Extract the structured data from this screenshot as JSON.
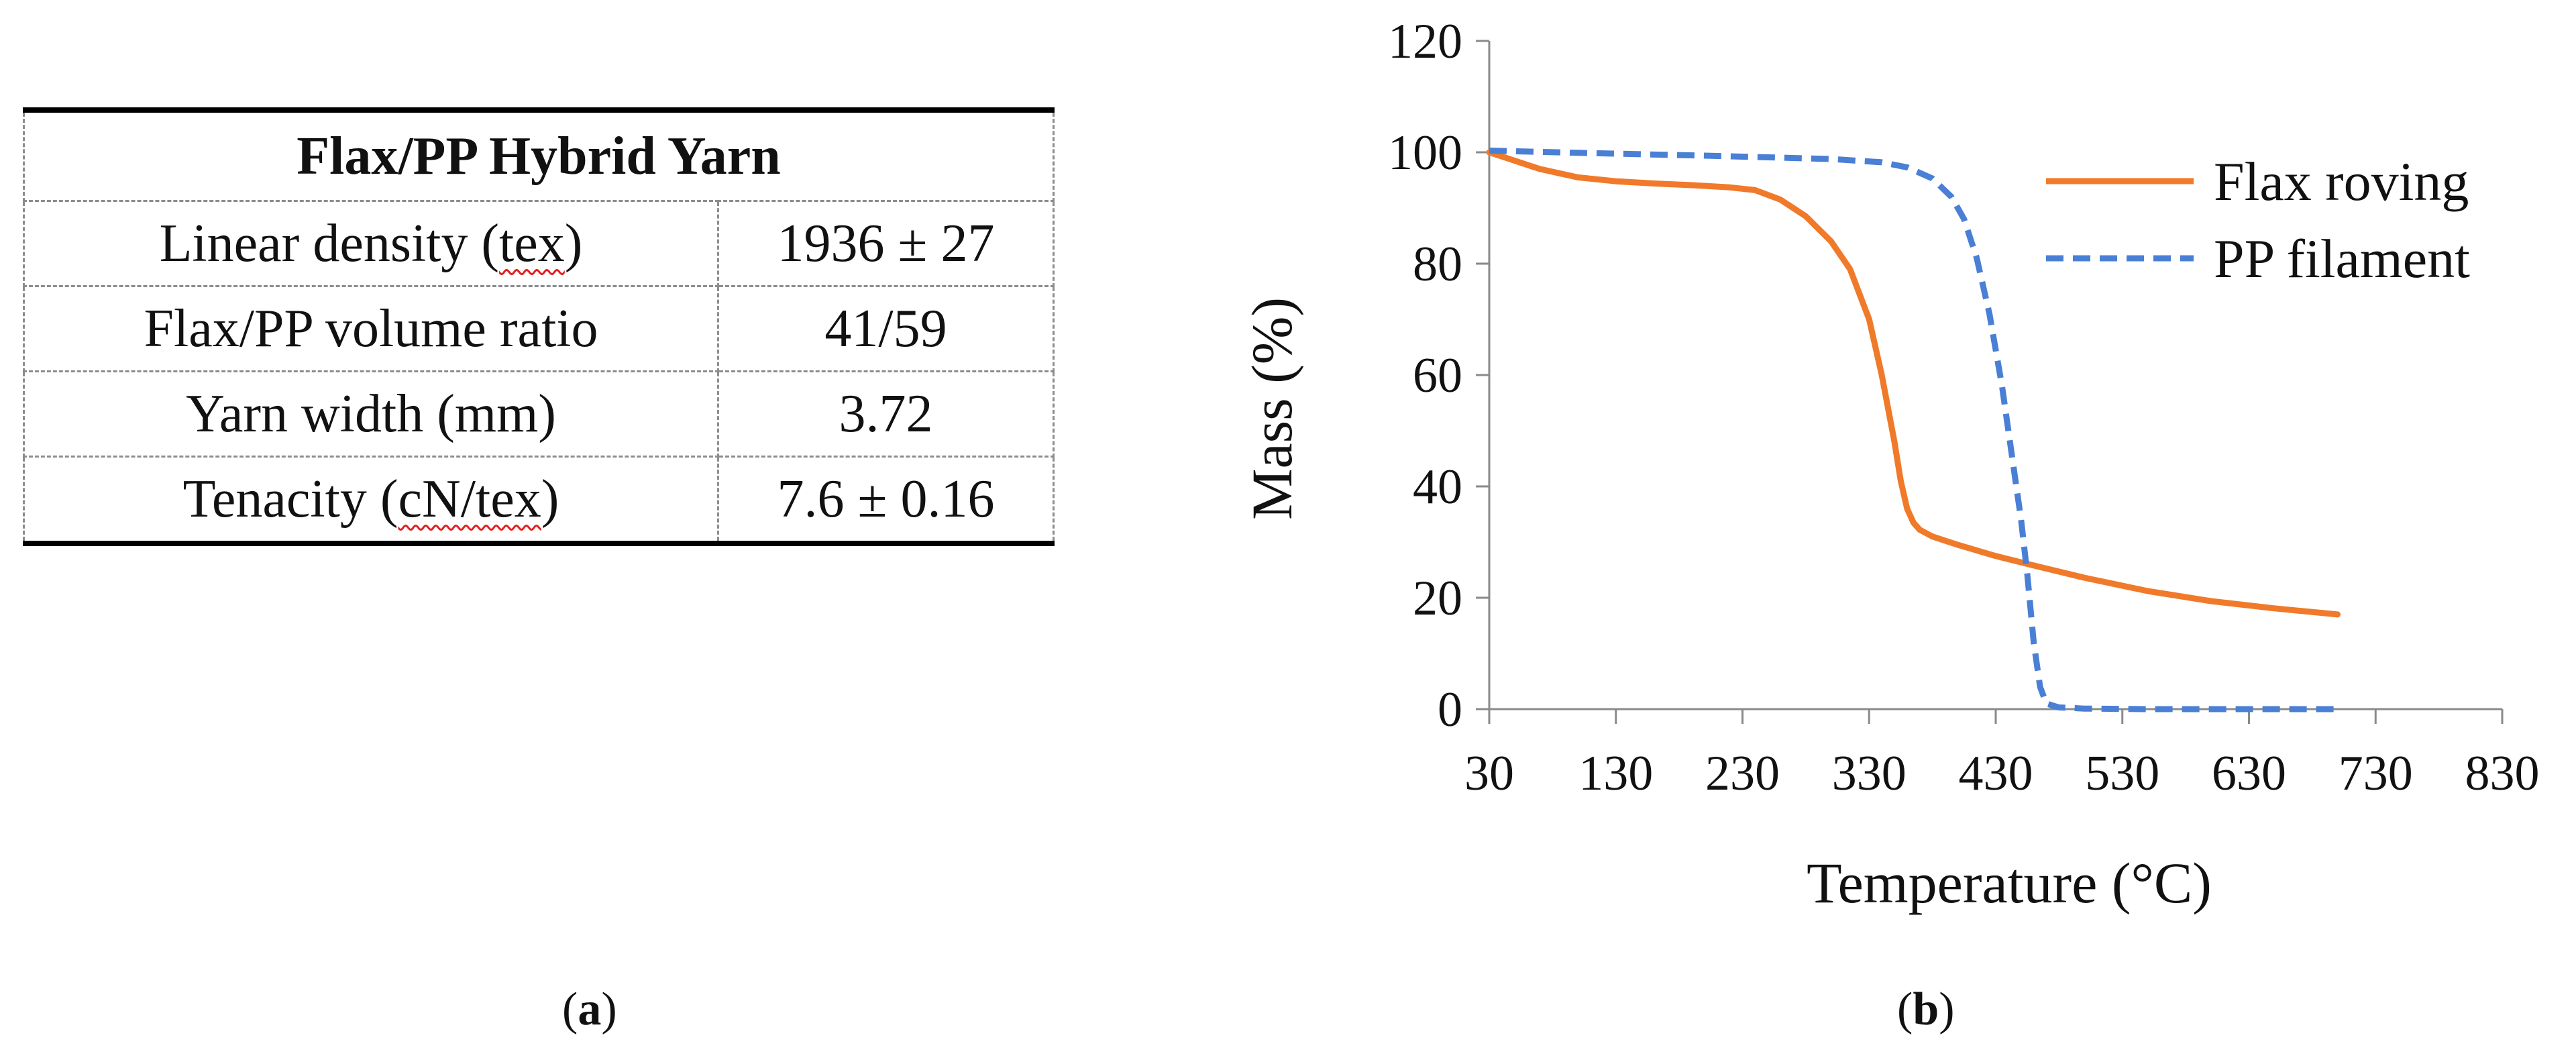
{
  "table": {
    "title": "Flax/PP Hybrid Yarn",
    "rows": [
      {
        "label_pre": "Linear density (",
        "label_squiggle": "tex",
        "label_post": ")",
        "value": "1936 ± 27"
      },
      {
        "label_pre": "Flax/PP volume ratio",
        "label_squiggle": "",
        "label_post": "",
        "value": "41/59"
      },
      {
        "label_pre": "Yarn width (mm)",
        "label_squiggle": "",
        "label_post": "",
        "value": "3.72"
      },
      {
        "label_pre": "Tenacity (",
        "label_squiggle": "cN/tex",
        "label_post": ")",
        "value": "7.6 ± 0.16"
      }
    ]
  },
  "captions": {
    "a": {
      "open": "(",
      "letter": "a",
      "close": ")"
    },
    "b": {
      "open": "(",
      "letter": "b",
      "close": ")"
    }
  },
  "chart_data": {
    "type": "line",
    "title": "",
    "xlabel": "Temperature (°C)",
    "ylabel": "Mass (%)",
    "xlim": [
      30,
      830
    ],
    "ylim": [
      0,
      120
    ],
    "xticks": [
      30,
      130,
      230,
      330,
      430,
      530,
      630,
      730,
      830
    ],
    "yticks": [
      0,
      20,
      40,
      60,
      80,
      100,
      120
    ],
    "grid": false,
    "legend_position": "top-right",
    "series": [
      {
        "name": "Flax roving",
        "color": "#f07a2a",
        "style": "solid",
        "x": [
          30,
          50,
          70,
          100,
          130,
          160,
          190,
          220,
          240,
          260,
          280,
          300,
          315,
          330,
          340,
          350,
          355,
          360,
          365,
          370,
          380,
          400,
          430,
          460,
          500,
          550,
          600,
          650,
          700
        ],
        "y": [
          100,
          98.5,
          97,
          95.5,
          94.8,
          94.4,
          94.1,
          93.7,
          93.2,
          91.5,
          88.5,
          84,
          79,
          70,
          60,
          48,
          41,
          36,
          33.5,
          32.2,
          31,
          29.5,
          27.5,
          25.8,
          23.6,
          21.2,
          19.4,
          18.1,
          17
        ]
      },
      {
        "name": "PP filament",
        "color": "#4a7fd6",
        "style": "dashed",
        "x": [
          30,
          100,
          200,
          300,
          340,
          360,
          380,
          395,
          405,
          415,
          425,
          435,
          445,
          450,
          455,
          460,
          465,
          470,
          480,
          500,
          550,
          600,
          650,
          700
        ],
        "y": [
          100.3,
          99.9,
          99.4,
          98.8,
          98.2,
          97.3,
          95.3,
          92,
          88,
          81,
          71,
          58,
          42,
          34,
          24,
          12,
          4,
          1,
          0.3,
          0.1,
          0,
          0,
          0,
          0
        ]
      }
    ]
  }
}
